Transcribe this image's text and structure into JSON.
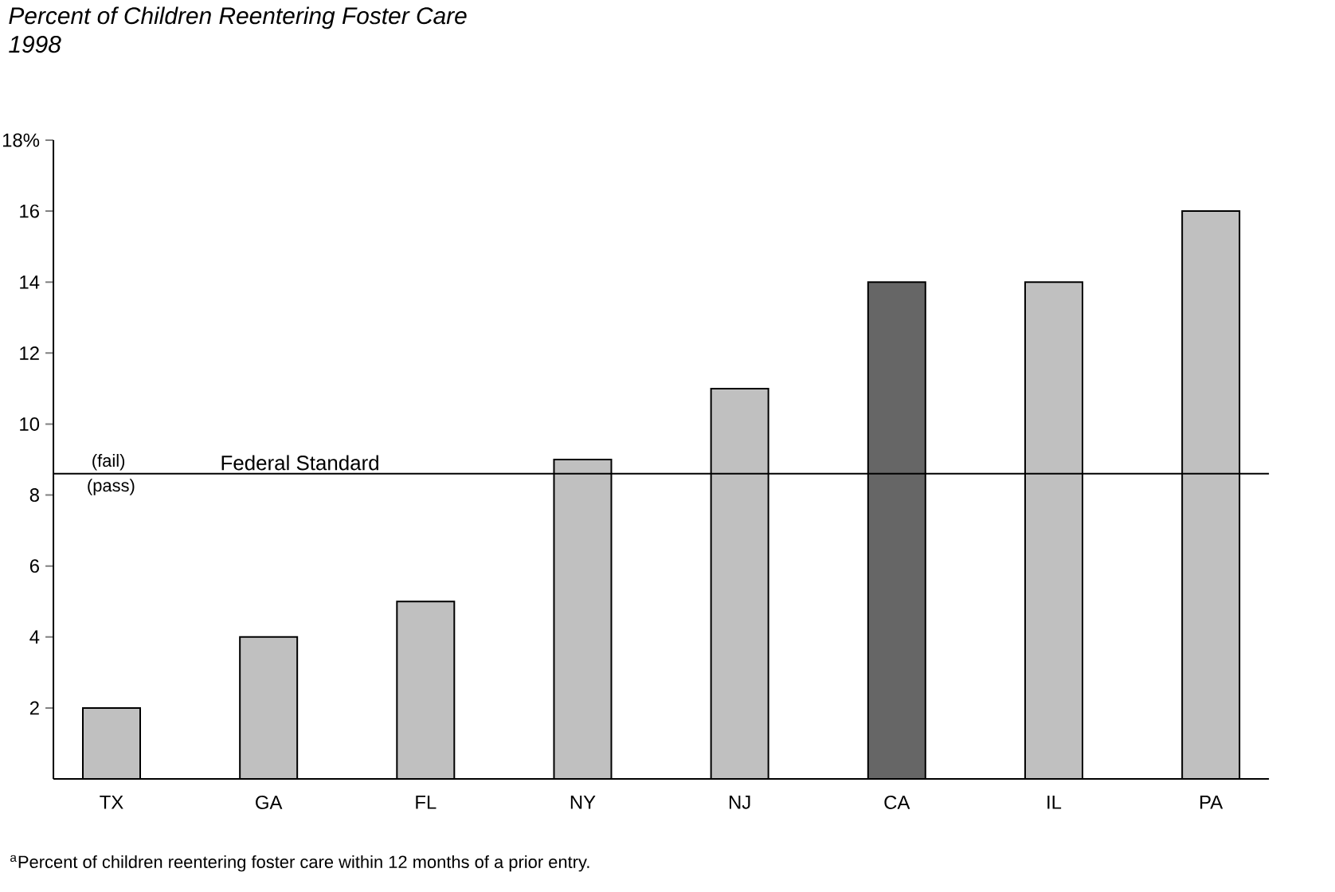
{
  "chart_data": {
    "type": "bar",
    "title": "Percent of Children Reentering Foster Care",
    "subtitle": "1998",
    "categories": [
      "TX",
      "GA",
      "FL",
      "NY",
      "NJ",
      "CA",
      "IL",
      "PA"
    ],
    "values": [
      2,
      4,
      5,
      9,
      11,
      14,
      14,
      16
    ],
    "colors": [
      "#c0c0c0",
      "#c0c0c0",
      "#c0c0c0",
      "#c0c0c0",
      "#c0c0c0",
      "#666666",
      "#c0c0c0",
      "#c0c0c0"
    ],
    "ylim": [
      0,
      18
    ],
    "yticks": [
      2,
      4,
      6,
      8,
      10,
      12,
      14,
      16,
      {
        "value": 18,
        "label": "18%"
      }
    ],
    "ref_lines": [
      {
        "axis": "y",
        "value": 8.6,
        "label": "Federal Standard",
        "color": "#000000"
      }
    ],
    "annotations": [
      "(fail)",
      "(pass)",
      "$^{a}$Percent of children reentering foster care within 12 months of a prior entry."
    ],
    "grid": false
  }
}
